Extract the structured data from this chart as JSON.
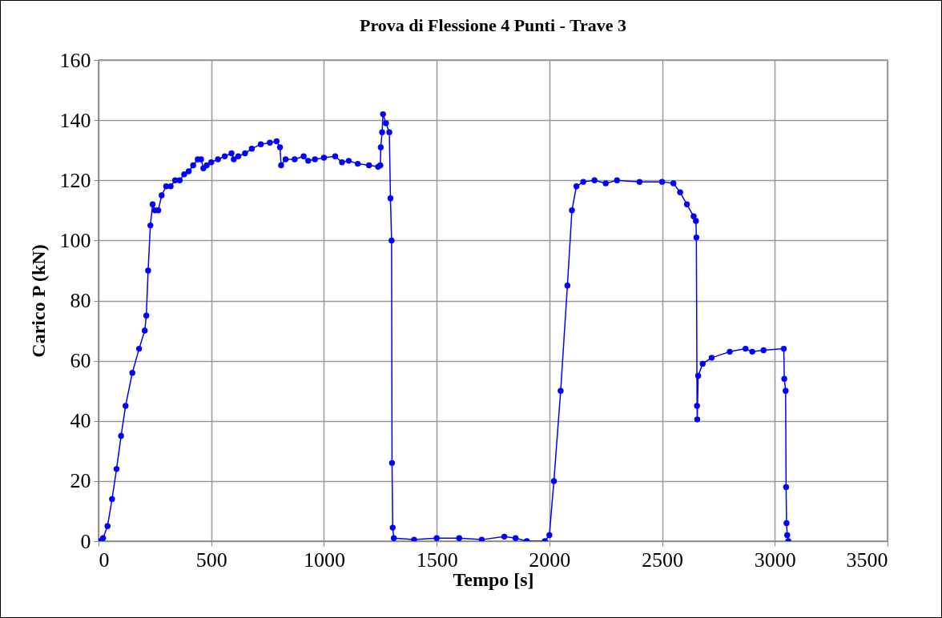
{
  "chart_data": {
    "type": "line",
    "title": "Prova di Flessione 4 Punti  - Trave 3",
    "xlabel": "Tempo [s]",
    "ylabel": "Carico P (kN)",
    "x": [
      0,
      20,
      40,
      60,
      80,
      100,
      120,
      150,
      180,
      205,
      212,
      220,
      230,
      240,
      250,
      265,
      280,
      300,
      320,
      340,
      360,
      380,
      400,
      420,
      440,
      455,
      465,
      480,
      500,
      530,
      560,
      590,
      600,
      620,
      650,
      680,
      720,
      760,
      790,
      805,
      810,
      830,
      870,
      910,
      930,
      960,
      1000,
      1050,
      1080,
      1110,
      1150,
      1200,
      1240,
      1250,
      1252,
      1258,
      1262,
      1275,
      1290,
      1295,
      1300,
      1302,
      1305,
      1310,
      1400,
      1500,
      1600,
      1700,
      1800,
      1850,
      1900,
      1980,
      2000,
      2020,
      2050,
      2080,
      2100,
      2120,
      2150,
      2200,
      2250,
      2300,
      2400,
      2500,
      2550,
      2580,
      2610,
      2640,
      2650,
      2652,
      2655,
      2656,
      2660,
      2680,
      2720,
      2800,
      2870,
      2900,
      2950,
      3040,
      3042,
      3048,
      3050,
      3052,
      3055,
      3060
    ],
    "series": [
      {
        "color": "#0000ff",
        "values": [
          0,
          1,
          5,
          14,
          24,
          35,
          45,
          56,
          64,
          70,
          75,
          90,
          105,
          112,
          110,
          110,
          115,
          118,
          118,
          120,
          120,
          122,
          123,
          125,
          127,
          127,
          124,
          125,
          126,
          127,
          128,
          129,
          127,
          128,
          129,
          130.5,
          132,
          132.5,
          133,
          131,
          125,
          127,
          127,
          128,
          126.5,
          127,
          127.5,
          128,
          126,
          126.5,
          125.5,
          125,
          124.5,
          125,
          131,
          136,
          142,
          139,
          136,
          114,
          100,
          26,
          4.5,
          1,
          0.5,
          1,
          1,
          0.5,
          1.5,
          1,
          0,
          0,
          2,
          20,
          50,
          85,
          110,
          118,
          119.5,
          120,
          119,
          120,
          119.5,
          119.5,
          119,
          116,
          112,
          108,
          106.5,
          101,
          45,
          40.5,
          55,
          59,
          61,
          63,
          64,
          63,
          63.5,
          64,
          54,
          50,
          18,
          6,
          2,
          0
        ]
      }
    ],
    "xlim": [
      0,
      3500
    ],
    "xticks": [
      0,
      500,
      1000,
      1500,
      2000,
      2500,
      3000,
      3500
    ],
    "ylim": [
      0,
      160
    ],
    "yticks": [
      0,
      20,
      40,
      60,
      80,
      100,
      120,
      140,
      160
    ],
    "grid": true,
    "marker": "circle",
    "line_style": "solid"
  }
}
